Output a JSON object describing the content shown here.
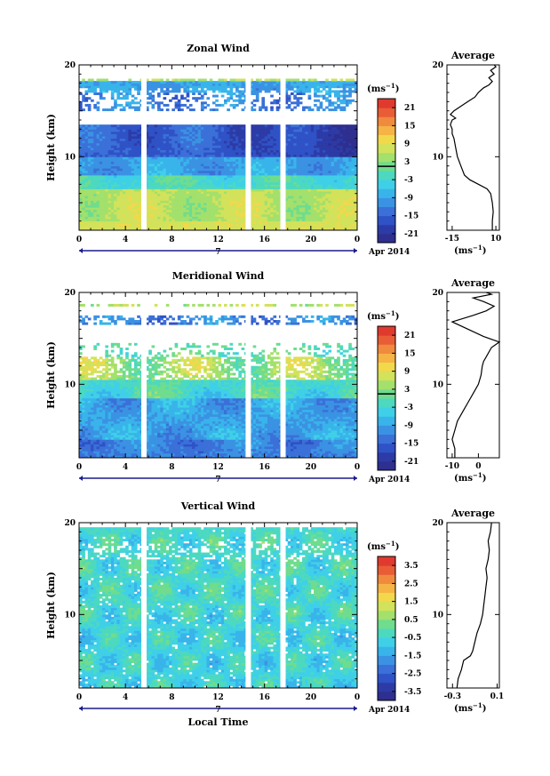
{
  "chart_data": [
    {
      "type": "heatmap",
      "title": "Zonal Wind",
      "ylabel": "Height (km)",
      "ylim": [
        2,
        20
      ],
      "y_ticks": [
        "20",
        "10"
      ],
      "x_ticks": [
        "0",
        "4",
        "8",
        "12",
        "16",
        "20",
        "0"
      ],
      "date_marker": "7",
      "date_label": "Apr 2014",
      "colorbar_unit": "(ms",
      "colorbar_unit_exp": "−1",
      "colorbar_unit_close": ")",
      "colorbar_ticks": [
        "21",
        "15",
        "9",
        "3",
        "-3",
        "-9",
        "-15",
        "-21"
      ],
      "colorbar_range": [
        -24,
        24
      ],
      "gaps_hours": [
        5.6,
        14.6,
        17.6
      ],
      "profile": {
        "title": "Average",
        "y_ticks": [
          "20",
          "10"
        ],
        "x_ticks": [
          "-15",
          "10"
        ],
        "xlim": [
          -18,
          12
        ],
        "xlabel": "(ms",
        "xlabel_exp": "−1",
        "xlabel_close": ")",
        "points": [
          [
            8,
            2
          ],
          [
            8,
            3
          ],
          [
            8.5,
            4
          ],
          [
            8,
            5
          ],
          [
            7,
            6
          ],
          [
            5,
            6.5
          ],
          [
            0,
            7
          ],
          [
            -5,
            7.5
          ],
          [
            -8,
            8
          ],
          [
            -10,
            9
          ],
          [
            -12,
            10
          ],
          [
            -13,
            11
          ],
          [
            -14,
            12
          ],
          [
            -15,
            12.5
          ],
          [
            -15,
            13
          ],
          [
            -16,
            13.5
          ],
          [
            -15,
            14
          ],
          [
            -13,
            14.2
          ],
          [
            -16,
            14.6
          ],
          [
            -14,
            15
          ],
          [
            -10,
            15.5
          ],
          [
            -6,
            16
          ],
          [
            -2,
            16.5
          ],
          [
            0,
            17
          ],
          [
            3,
            17.5
          ],
          [
            6,
            17.8
          ],
          [
            8,
            18.2
          ],
          [
            6,
            18.6
          ],
          [
            9,
            19
          ],
          [
            7,
            19.4
          ],
          [
            10,
            19.8
          ],
          [
            9,
            20
          ]
        ]
      }
    },
    {
      "type": "heatmap",
      "title": "Meridional Wind",
      "ylabel": "Height (km)",
      "ylim": [
        2,
        20
      ],
      "y_ticks": [
        "20",
        "10"
      ],
      "x_ticks": [
        "0",
        "4",
        "8",
        "12",
        "16",
        "20",
        "0"
      ],
      "date_marker": "7",
      "date_label": "Apr 2014",
      "colorbar_unit": "(ms",
      "colorbar_unit_exp": "−1",
      "colorbar_unit_close": ")",
      "colorbar_ticks": [
        "21",
        "15",
        "9",
        "3",
        "-3",
        "-9",
        "-15",
        "-21"
      ],
      "colorbar_range": [
        -24,
        24
      ],
      "gaps_hours": [
        5.6,
        14.6,
        17.6
      ],
      "profile": {
        "title": "Average",
        "y_ticks": [
          "20",
          "10"
        ],
        "x_ticks": [
          "-10",
          "0"
        ],
        "xlim": [
          -12,
          8
        ],
        "xlabel": "(ms",
        "xlabel_exp": "−1",
        "xlabel_close": ")",
        "points": [
          [
            -9,
            2
          ],
          [
            -9,
            3
          ],
          [
            -10,
            4
          ],
          [
            -9,
            5
          ],
          [
            -8,
            6
          ],
          [
            -6,
            7
          ],
          [
            -4,
            8
          ],
          [
            -2,
            9
          ],
          [
            0,
            10
          ],
          [
            1,
            11
          ],
          [
            1.5,
            12
          ],
          [
            2,
            12.5
          ],
          [
            3,
            13
          ],
          [
            5,
            14
          ],
          [
            8,
            14.6
          ],
          [
            2,
            15.2
          ],
          [
            -4,
            16
          ],
          [
            -10,
            16.8
          ],
          [
            -2,
            17.5
          ],
          [
            3,
            18
          ],
          [
            6,
            18.5
          ],
          [
            2,
            19
          ],
          [
            -2,
            19.4
          ],
          [
            5,
            19.8
          ],
          [
            3,
            20
          ]
        ]
      }
    },
    {
      "type": "heatmap",
      "title": "Vertical Wind",
      "ylabel": "Height (km)",
      "xlabel": "Local Time",
      "ylim": [
        2,
        20
      ],
      "y_ticks": [
        "20",
        "10"
      ],
      "x_ticks": [
        "0",
        "4",
        "8",
        "12",
        "16",
        "20",
        "0"
      ],
      "date_marker": "7",
      "date_label": "Apr 2014",
      "colorbar_unit": "(ms",
      "colorbar_unit_exp": "−1",
      "colorbar_unit_close": ")",
      "colorbar_ticks": [
        "3.5",
        "2.5",
        "1.5",
        "0.5",
        "-0.5",
        "-1.5",
        "-2.5",
        "-3.5"
      ],
      "colorbar_range": [
        -4,
        4
      ],
      "gaps_hours": [
        5.6,
        14.6,
        17.6
      ],
      "profile": {
        "title": "Average",
        "y_ticks": [
          "20",
          "10"
        ],
        "x_ticks": [
          "-0.3",
          "0.1"
        ],
        "xlim": [
          -0.35,
          0.12
        ],
        "xlabel": "(ms",
        "xlabel_exp": "−1",
        "xlabel_close": ")",
        "points": [
          [
            -0.26,
            2
          ],
          [
            -0.25,
            3
          ],
          [
            -0.22,
            4
          ],
          [
            -0.2,
            5
          ],
          [
            -0.14,
            5.5
          ],
          [
            -0.12,
            6
          ],
          [
            -0.1,
            7
          ],
          [
            -0.08,
            8
          ],
          [
            -0.05,
            9
          ],
          [
            -0.03,
            10
          ],
          [
            -0.02,
            11
          ],
          [
            -0.01,
            12
          ],
          [
            0.0,
            13
          ],
          [
            0.01,
            14
          ],
          [
            0.0,
            15
          ],
          [
            0.02,
            16
          ],
          [
            0.03,
            17
          ],
          [
            0.02,
            18
          ],
          [
            0.04,
            19
          ],
          [
            0.05,
            20
          ]
        ]
      }
    }
  ]
}
